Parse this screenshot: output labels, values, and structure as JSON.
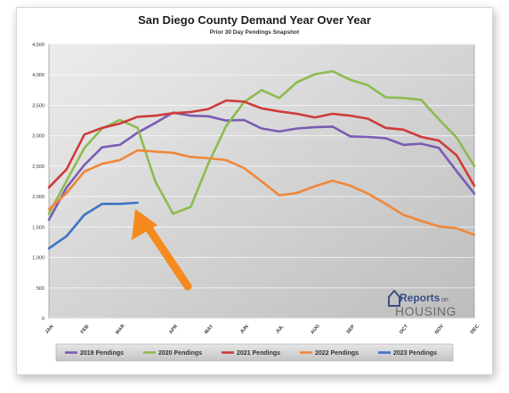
{
  "chart_data": {
    "type": "line",
    "title": "San Diego County Demand Year Over Year",
    "subtitle": "Prior 30 Day Pendings Snapshot",
    "xlabel": "",
    "ylabel": "",
    "ylim": [
      0,
      4500
    ],
    "yticks": [
      0,
      500,
      1000,
      1500,
      2000,
      2500,
      3000,
      3500,
      4000,
      4500
    ],
    "ytick_labels": [
      "0",
      "500",
      "1,000",
      "1,500",
      "2,000",
      "2,500",
      "3,000",
      "3,500",
      "4,000",
      "4,500"
    ],
    "xlim": [
      0,
      24
    ],
    "month_ticks": [
      {
        "label": "JAN",
        "x": 0
      },
      {
        "label": "FEB",
        "x": 2
      },
      {
        "label": "MAR",
        "x": 4
      },
      {
        "label": "APR",
        "x": 7
      },
      {
        "label": "MAY",
        "x": 9
      },
      {
        "label": "JUN",
        "x": 11
      },
      {
        "label": "JUL",
        "x": 13
      },
      {
        "label": "AUG",
        "x": 15
      },
      {
        "label": "SEP",
        "x": 17
      },
      {
        "label": "OCT",
        "x": 20
      },
      {
        "label": "NOV",
        "x": 22
      },
      {
        "label": "DEC",
        "x": 24
      }
    ],
    "grid": true,
    "legend_position": "bottom",
    "series": [
      {
        "name": "2019 Pendings",
        "color": "#7a5cb3",
        "x": [
          0,
          1,
          2,
          3,
          4,
          5,
          6,
          7,
          8,
          9,
          10,
          11,
          12,
          13,
          14,
          15,
          16,
          17,
          18,
          19,
          20,
          21,
          22,
          23,
          24
        ],
        "values": [
          1620,
          2150,
          2520,
          2810,
          2850,
          3050,
          3210,
          3380,
          3330,
          3320,
          3250,
          3260,
          3120,
          3070,
          3120,
          3140,
          3150,
          2990,
          2980,
          2960,
          2850,
          2870,
          2800,
          2420,
          2050
        ]
      },
      {
        "name": "2020 Pendings",
        "color": "#8dbb4f",
        "x": [
          0,
          1,
          2,
          3,
          4,
          5,
          6,
          7,
          8,
          9,
          10,
          11,
          12,
          13,
          14,
          15,
          16,
          17,
          18,
          19,
          20,
          21,
          22,
          23,
          24
        ],
        "values": [
          1720,
          2260,
          2800,
          3120,
          3260,
          3130,
          2250,
          1720,
          1830,
          2550,
          3160,
          3550,
          3750,
          3620,
          3880,
          4010,
          4060,
          3920,
          3830,
          3630,
          3620,
          3590,
          3270,
          2970,
          2500
        ]
      },
      {
        "name": "2021 Pendings",
        "color": "#cf3b3b",
        "x": [
          0,
          1,
          2,
          3,
          4,
          5,
          6,
          7,
          8,
          9,
          10,
          11,
          12,
          13,
          14,
          15,
          16,
          17,
          18,
          19,
          20,
          21,
          22,
          23,
          24
        ],
        "values": [
          2150,
          2450,
          3020,
          3130,
          3200,
          3310,
          3330,
          3370,
          3390,
          3440,
          3580,
          3560,
          3450,
          3400,
          3360,
          3300,
          3360,
          3330,
          3280,
          3130,
          3100,
          2980,
          2920,
          2680,
          2180
        ]
      },
      {
        "name": "2022 Pendings",
        "color": "#f0873a",
        "x": [
          0,
          1,
          2,
          3,
          4,
          5,
          6,
          7,
          8,
          9,
          10,
          11,
          12,
          13,
          14,
          15,
          16,
          17,
          18,
          19,
          20,
          21,
          22,
          23,
          24
        ],
        "values": [
          1790,
          2060,
          2410,
          2540,
          2600,
          2760,
          2740,
          2720,
          2650,
          2630,
          2600,
          2470,
          2250,
          2020,
          2060,
          2170,
          2260,
          2180,
          2050,
          1880,
          1700,
          1600,
          1510,
          1480,
          1370
        ]
      },
      {
        "name": "2023 Pendings",
        "color": "#3b73c6",
        "x": [
          0,
          1,
          2,
          3,
          4,
          5
        ],
        "values": [
          1150,
          1350,
          1700,
          1880,
          1880,
          1900
        ]
      }
    ],
    "annotation": {
      "type": "arrow",
      "color": "#f58a1f",
      "points_to_x": 5,
      "points_to_y": 1900
    },
    "logo": {
      "line1": "Reports",
      "line1_small": "on",
      "line2": "HOUSING"
    }
  }
}
